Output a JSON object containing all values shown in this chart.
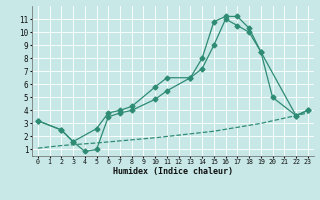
{
  "bg_color": "#c8e8e8",
  "grid_color": "#ffffff",
  "line_color": "#2e8b74",
  "xlabel": "Humidex (Indice chaleur)",
  "xlim": [
    -0.5,
    23.5
  ],
  "ylim": [
    0.5,
    12
  ],
  "yticks": [
    1,
    2,
    3,
    4,
    5,
    6,
    7,
    8,
    9,
    10,
    11
  ],
  "xticks": [
    0,
    1,
    2,
    3,
    4,
    5,
    6,
    7,
    8,
    9,
    10,
    11,
    12,
    13,
    14,
    15,
    16,
    17,
    18,
    19,
    20,
    21,
    22,
    23
  ],
  "line1_x": [
    0,
    2,
    3,
    4,
    5,
    6,
    7,
    8,
    10,
    11,
    13,
    14,
    15,
    16,
    17,
    18,
    19,
    20,
    22,
    23
  ],
  "line1_y": [
    3.2,
    2.5,
    1.6,
    0.85,
    1.0,
    3.5,
    3.8,
    4.0,
    4.85,
    5.5,
    6.5,
    8.0,
    10.8,
    11.2,
    11.2,
    10.3,
    8.5,
    5.0,
    3.6,
    4.0
  ],
  "line2_x": [
    0,
    2,
    3,
    5,
    6,
    7,
    8,
    10,
    11,
    13,
    14,
    15,
    16,
    17,
    18,
    19,
    22,
    23
  ],
  "line2_y": [
    3.2,
    2.5,
    1.6,
    2.6,
    3.8,
    4.0,
    4.3,
    5.8,
    6.5,
    6.5,
    7.2,
    9.0,
    11.0,
    10.5,
    10.0,
    8.5,
    3.6,
    4.0
  ],
  "line3_x": [
    0,
    2,
    5,
    10,
    15,
    19,
    22,
    23
  ],
  "line3_y": [
    1.1,
    1.3,
    1.5,
    1.9,
    2.4,
    3.0,
    3.6,
    3.8
  ]
}
